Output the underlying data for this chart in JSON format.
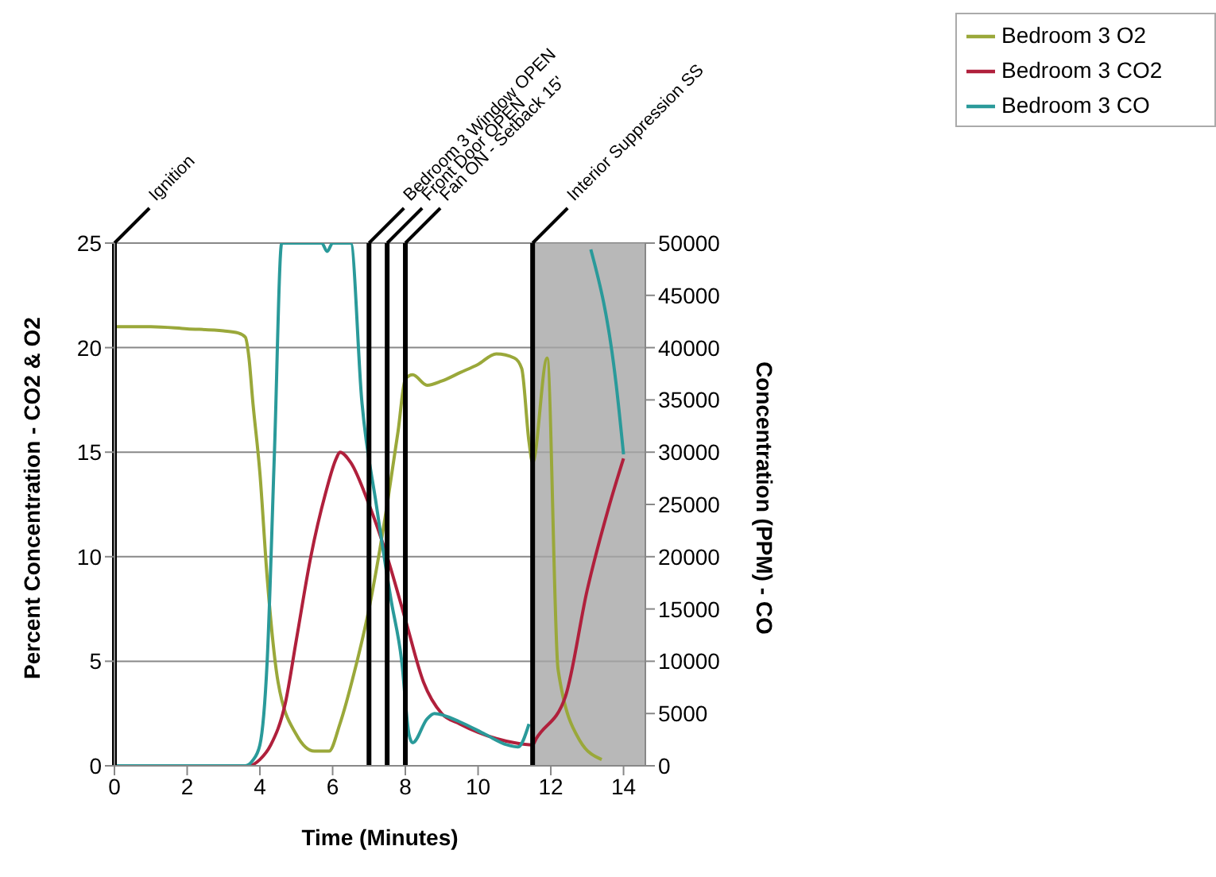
{
  "chart_data": {
    "type": "line",
    "xlabel": "Time (Minutes)",
    "ylabel": "Percent Concentration - CO2 & O2",
    "y2label": "Concentration (PPM) - CO",
    "xlim": [
      0,
      14.6
    ],
    "xticks": [
      0,
      2,
      4,
      6,
      8,
      10,
      12,
      14
    ],
    "ylim": [
      0,
      25
    ],
    "yticks": [
      0,
      5,
      10,
      15,
      20,
      25
    ],
    "y2lim": [
      0,
      50000
    ],
    "y2ticks": [
      0,
      5000,
      10000,
      15000,
      20000,
      25000,
      30000,
      35000,
      40000,
      45000,
      50000
    ],
    "grid": "y",
    "legend": "top right",
    "marker": "none",
    "line_style": "solid",
    "series": [
      {
        "name": "Bedroom 3 O2",
        "color": "#9aa83a",
        "x": [
          0,
          1,
          2,
          3,
          3.4,
          3.6,
          3.7,
          3.8,
          4.0,
          4.2,
          4.5,
          5.0,
          5.5,
          5.9,
          6.2,
          6.6,
          7.0,
          7.5,
          7.8,
          8.0,
          8.2,
          8.6,
          9.0,
          9.5,
          10.0,
          10.5,
          11.0,
          11.2,
          11.4,
          11.5,
          11.9,
          12.2,
          12.8,
          13.4
        ],
        "values": [
          21,
          21,
          20.9,
          20.8,
          20.7,
          20.5,
          19.5,
          17.5,
          14,
          9,
          4,
          1.5,
          0.7,
          0.7,
          2,
          4.5,
          7.5,
          12.5,
          16,
          18.5,
          18.7,
          18.2,
          18.4,
          18.8,
          19.2,
          19.7,
          19.5,
          19,
          15.5,
          14.5,
          19.5,
          4.6,
          1.2,
          0.3
        ]
      },
      {
        "name": "Bedroom 3 CO2",
        "color": "#b0203c",
        "x": [
          0,
          3.7,
          4.0,
          4.3,
          4.7,
          5.0,
          5.4,
          5.8,
          6.1,
          6.2,
          6.5,
          7.0,
          7.5,
          8.0,
          8.5,
          9.0,
          9.5,
          10.0,
          10.5,
          11.0,
          11.5,
          11.6,
          12.4,
          13.0,
          13.6,
          14.0
        ],
        "values": [
          0,
          0,
          0.3,
          1,
          3,
          6,
          10,
          13,
          14.7,
          15,
          14.5,
          12.5,
          10,
          7,
          4,
          2.5,
          2,
          1.6,
          1.3,
          1.1,
          1,
          1.3,
          3.3,
          8.4,
          12.4,
          14.7
        ]
      },
      {
        "name": "Bedroom 3 CO",
        "color": "#2a9a9a",
        "axis": "y2",
        "x": [
          0,
          3.6,
          3.8,
          4.0,
          4.2,
          4.4,
          4.6,
          5.7,
          5.85,
          6.0,
          6.5,
          6.8,
          7.2,
          7.6,
          7.9,
          8.1,
          8.2,
          8.6,
          8.8,
          9.5,
          10.2,
          10.8,
          11.1,
          11.4,
          11.5,
          12.0,
          13.1,
          13.8,
          14.0
        ],
        "values": [
          0,
          0,
          500,
          2000,
          10000,
          30000,
          50000,
          50000,
          49200,
          50000,
          50000,
          35000,
          25000,
          16000,
          10000,
          3000,
          2200,
          4500,
          5000,
          4200,
          3000,
          2000,
          1800,
          4000,
          null,
          null,
          49400,
          36400,
          29800
        ]
      }
    ],
    "ref_lines": [
      {
        "axis": "x",
        "value": 0,
        "label": "Ignition",
        "color": "#000000"
      },
      {
        "axis": "x",
        "value": 7,
        "label": "Bedroom 3 Window OPEN",
        "color": "#000000"
      },
      {
        "axis": "x",
        "value": 7.5,
        "label": "Front Door OPEN",
        "color": "#000000"
      },
      {
        "axis": "x",
        "value": 8,
        "label": "Fan ON - Setback 15'",
        "color": "#000000"
      },
      {
        "axis": "x",
        "value": 11.5,
        "label": "Interior Suppression SS",
        "color": "#000000"
      }
    ],
    "bands": [
      {
        "axis": "x",
        "from": 11.5,
        "to": 14.6,
        "color": "#a6a6a6"
      }
    ]
  }
}
